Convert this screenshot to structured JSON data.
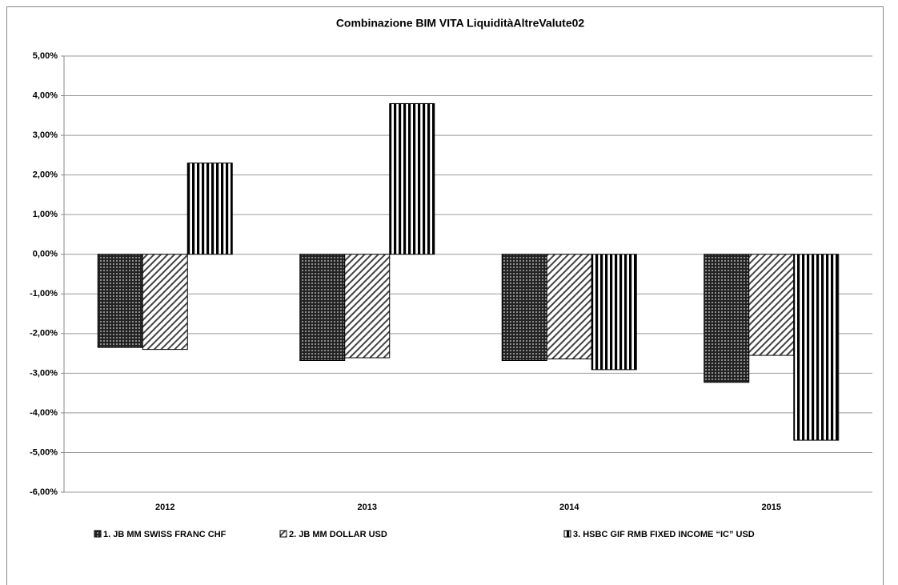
{
  "chart_data": {
    "type": "bar",
    "title": "Combinazione BIM VITA LiquiditàAltreValute02",
    "categories": [
      "2012",
      "2013",
      "2014",
      "2015"
    ],
    "series": [
      {
        "name": "1. JB MM SWISS FRANC CHF",
        "color": "#000000",
        "pattern": "dots",
        "values": [
          -2.35,
          -2.68,
          -2.68,
          -3.23
        ]
      },
      {
        "name": "2. JB MM DOLLAR USD",
        "color": "#000000",
        "pattern": "diagonal",
        "values": [
          -2.4,
          -2.61,
          -2.64,
          -2.55
        ]
      },
      {
        "name": "3. HSBC GIF RMB FIXED INCOME “IC” USD",
        "color": "#000000",
        "pattern": "vertical",
        "values": [
          2.3,
          3.8,
          -2.91,
          -4.69
        ]
      }
    ],
    "ylim": [
      -6,
      5
    ],
    "yticks": [
      {
        "value": -6,
        "label": "-6,00%"
      },
      {
        "value": -5,
        "label": "-5,00%"
      },
      {
        "value": -4,
        "label": "-4,00%"
      },
      {
        "value": -3,
        "label": "-3,00%"
      },
      {
        "value": -2,
        "label": "-2,00%"
      },
      {
        "value": -1,
        "label": "-1,00%"
      },
      {
        "value": 0,
        "label": "0,00%"
      },
      {
        "value": 1,
        "label": "1,00%"
      },
      {
        "value": 2,
        "label": "2,00%"
      },
      {
        "value": 3,
        "label": "3,00%"
      },
      {
        "value": 4,
        "label": "4,00%"
      },
      {
        "value": 5,
        "label": "5,00%"
      }
    ],
    "grid": true,
    "legend": "bottom"
  }
}
